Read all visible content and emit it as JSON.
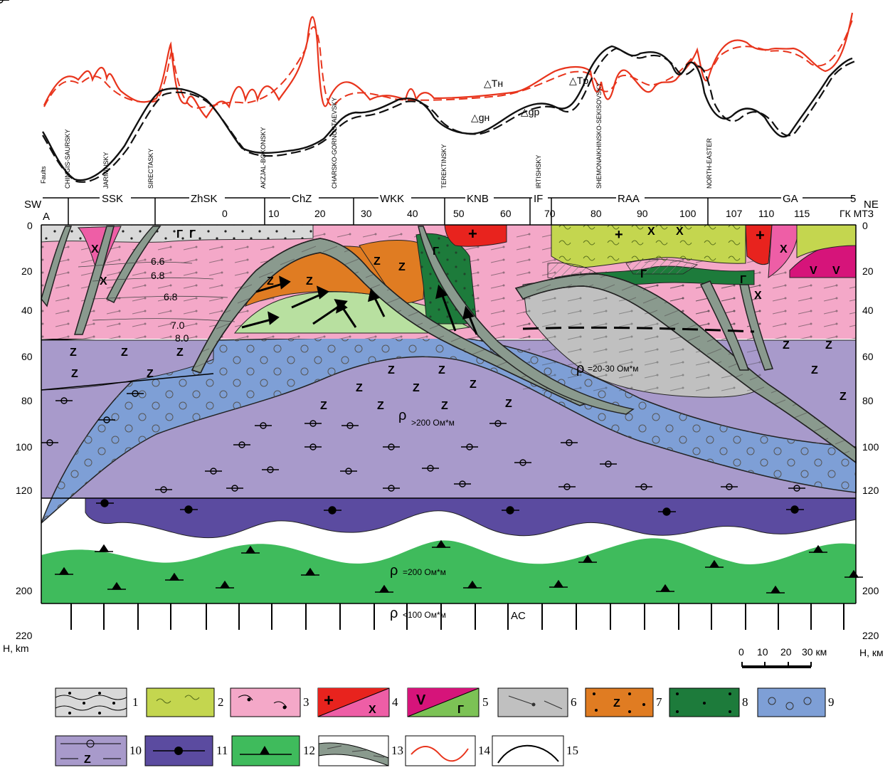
{
  "section": {
    "ends": {
      "left": "A",
      "right": "5",
      "sw": "SW",
      "ne": "NE"
    },
    "x_axis_ticks": [
      "0",
      "10",
      "20",
      "30",
      "40",
      "50",
      "60",
      "70",
      "80",
      "90",
      "100",
      "107",
      "110",
      "115"
    ],
    "x_axis_suffix": "ГК МТЗ",
    "depth_ticks_left": [
      "0",
      "20",
      "40",
      "60",
      "80",
      "100",
      "120",
      "200",
      "220"
    ],
    "depth_ticks_right": [
      "0",
      "20",
      "40",
      "60",
      "80",
      "100",
      "120",
      "200",
      "220"
    ],
    "depth_axis_label": "H, км",
    "depth_axis_label_left": "H, km",
    "zones": [
      "SSK",
      "ZhSK",
      "ChZ",
      "WKK",
      "KNB",
      "IF",
      "RAA",
      "GA"
    ],
    "faults_label": "Faults",
    "faults": [
      "CHINGIS-SAURSKY",
      "JARMINSKY",
      "SIRECTASKY",
      "AKZJAL-BOKONSKY",
      "CHARSKO-GORNOSTAEVSKY",
      "TEREKTINSKY",
      "IRTISHSKY",
      "SHEMONAIKHINSKO-SEKISOVSKY",
      "NORTH-EASTER"
    ],
    "resistivity_labels": [
      {
        "rho": "ρ",
        "text": "=20-30 Ом*м"
      },
      {
        "rho": "ρ",
        "text": ">200 Ом*м"
      },
      {
        "rho": "ρ",
        "text": "=200 Ом*м"
      },
      {
        "rho": "ρ",
        "text": "<100 Ом*м"
      }
    ],
    "contour_values": [
      "6.6",
      "6.8",
      "6.8",
      "7.0",
      "8.0"
    ],
    "asthenosphere_label": "AC"
  },
  "profiles": {
    "labels": [
      "△Tн",
      "△Tр",
      "△gн",
      "△gр"
    ],
    "colors": {
      "magnetic": "#e8341c",
      "gravity": "#111111"
    }
  },
  "scale_bar": {
    "ticks": [
      "0",
      "10",
      "20",
      "30 км"
    ]
  },
  "legend": {
    "items": [
      {
        "num": "1",
        "color": "#d9d9d9"
      },
      {
        "num": "2",
        "color": "#c4d64f"
      },
      {
        "num": "3",
        "color": "#f4a8c8"
      },
      {
        "num": "4",
        "color": "#e8231e",
        "color2": "#ee5ea6"
      },
      {
        "num": "5",
        "color": "#d6147a",
        "color2": "#7cc255"
      },
      {
        "num": "6",
        "color": "#c0c0c0"
      },
      {
        "num": "7",
        "color": "#e07c22"
      },
      {
        "num": "8",
        "color": "#1d7b3b"
      },
      {
        "num": "9",
        "color": "#7e9fd6"
      },
      {
        "num": "10",
        "color": "#a89acb"
      },
      {
        "num": "11",
        "color": "#5b4ba0"
      },
      {
        "num": "12",
        "color": "#3fbb5c"
      },
      {
        "num": "13",
        "color": "#8a9a8e"
      },
      {
        "num": "14",
        "color": "#e8341c"
      },
      {
        "num": "15",
        "color": "#111111"
      }
    ]
  }
}
